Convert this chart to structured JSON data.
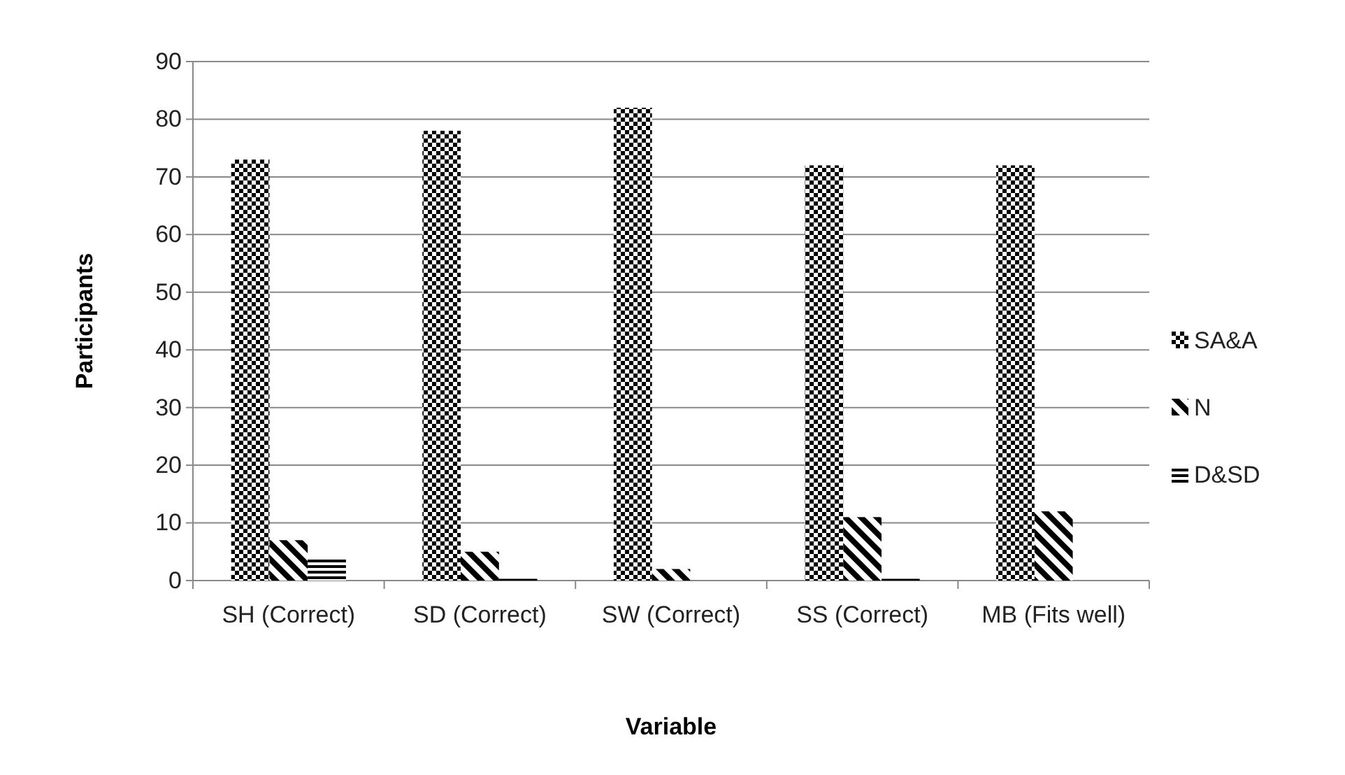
{
  "chart_data": {
    "type": "bar",
    "xlabel": "Variable",
    "ylabel": "Participants",
    "categories": [
      "SH (Correct)",
      "SD (Correct)",
      "SW (Correct)",
      "SS (Correct)",
      "MB (Fits well)"
    ],
    "series": [
      {
        "name": "SA&A",
        "color": "#000000",
        "values": [
          73,
          78,
          82,
          72,
          72
        ]
      },
      {
        "name": "N",
        "color": "#000000",
        "values": [
          7,
          5,
          2,
          11,
          12
        ]
      },
      {
        "name": "D&SD",
        "color": "#000000",
        "values": [
          4,
          0.3,
          0,
          0.3,
          0
        ]
      }
    ],
    "ylim": [
      0,
      90
    ],
    "yticks": [
      0,
      10,
      20,
      30,
      40,
      50,
      60,
      70,
      80,
      90
    ],
    "grid": "y",
    "legend": "right"
  }
}
